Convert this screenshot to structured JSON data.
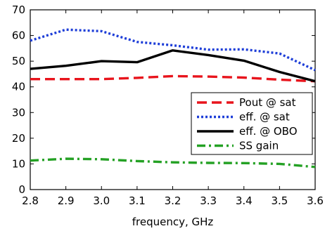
{
  "chart_data": {
    "type": "line",
    "title": "",
    "xlabel": "frequency, GHz",
    "ylabel": "",
    "xlim": [
      2.8,
      3.6
    ],
    "ylim": [
      0,
      70
    ],
    "xticks": [
      "2.8",
      "2.9",
      "3.0",
      "3.1",
      "3.2",
      "3.3",
      "3.4",
      "3.5",
      "3.6"
    ],
    "yticks": [
      "0",
      "10",
      "20",
      "30",
      "40",
      "50",
      "60",
      "70"
    ],
    "grid": false,
    "legend_position": "center-right",
    "x": [
      2.8,
      2.9,
      3.0,
      3.1,
      3.2,
      3.3,
      3.4,
      3.5,
      3.6
    ],
    "series": [
      {
        "name": "Pout @ sat",
        "color": "#e8141c",
        "dash": "dashed",
        "values": [
          43.0,
          43.0,
          43.0,
          43.5,
          44.2,
          44.0,
          43.6,
          42.8,
          42.2
        ]
      },
      {
        "name": "eff. @ sat",
        "color": "#1f3fd8",
        "dash": "dotted",
        "values": [
          58.0,
          62.3,
          61.7,
          57.5,
          56.2,
          54.5,
          54.6,
          53.0,
          46.5
        ]
      },
      {
        "name": "eff. @ OBO",
        "color": "#000000",
        "dash": "solid",
        "values": [
          47.0,
          48.2,
          50.0,
          49.6,
          54.2,
          52.4,
          50.2,
          45.8,
          42.2
        ]
      },
      {
        "name": "SS gain",
        "color": "#24a124",
        "dash": "dashdot",
        "values": [
          11.3,
          12.0,
          11.8,
          11.1,
          10.6,
          10.4,
          10.3,
          10.0,
          8.8
        ]
      }
    ]
  }
}
